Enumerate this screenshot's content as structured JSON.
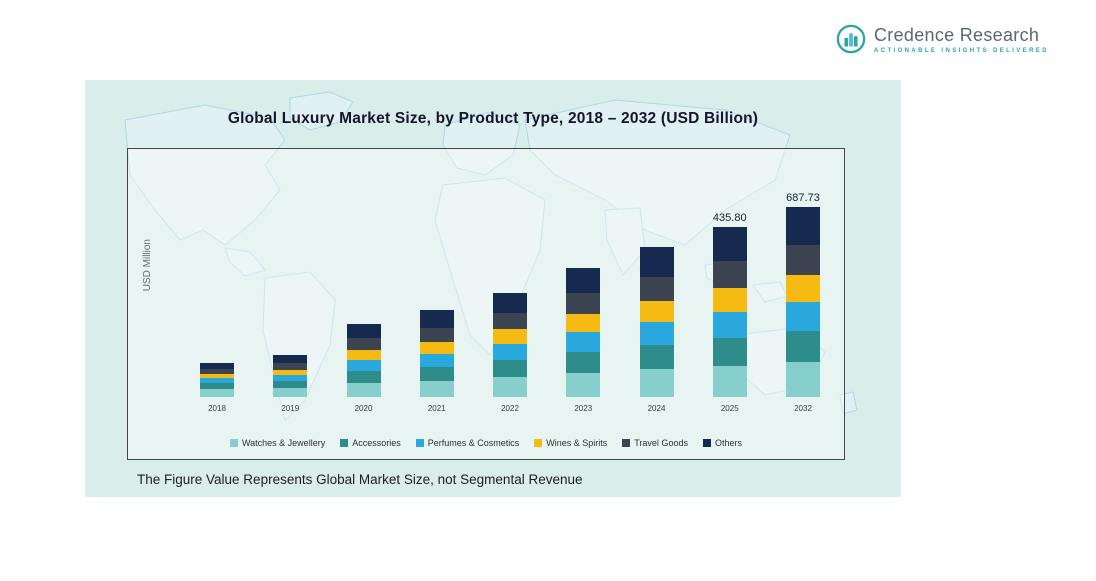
{
  "logo": {
    "name": "Credence Research",
    "tagline": "Actionable Insights Delivered"
  },
  "panel": {
    "title": "Global Luxury Market Size, by Product Type, 2018 – 2032 (USD Billion)",
    "footnote": "The Figure Value Represents Global Market Size, not Segmental Revenue"
  },
  "chart_data": {
    "type": "bar",
    "stacked": true,
    "title": "Global Luxury Market Size, by Product Type, 2018 – 2032 (USD Billion)",
    "xlabel": "",
    "ylabel": "USD Million",
    "axis_ticks": "none",
    "legend_position": "bottom",
    "categories": [
      "2018",
      "2019",
      "2020",
      "2021",
      "2022",
      "2023",
      "2024",
      "2025",
      "2032"
    ],
    "series": [
      {
        "name": "Watches & Jewellery",
        "color": "#86cfcc",
        "values": [
          8,
          9,
          14,
          16,
          20,
          24,
          28,
          31,
          35
        ]
      },
      {
        "name": "Accessories",
        "color": "#2e8c8a",
        "values": [
          6,
          7,
          12,
          14,
          17,
          21,
          24,
          28,
          31
        ]
      },
      {
        "name": "Perfumes & Cosmetics",
        "color": "#28a8dc",
        "values": [
          5,
          6,
          11,
          13,
          16,
          20,
          23,
          26,
          29
        ]
      },
      {
        "name": "Wines & Spirits",
        "color": "#f6bb13",
        "values": [
          4,
          5,
          10,
          12,
          15,
          18,
          21,
          24,
          27
        ]
      },
      {
        "name": "Travel Goods",
        "color": "#3c4452",
        "values": [
          5,
          7,
          12,
          14,
          16,
          21,
          24,
          27,
          30
        ]
      },
      {
        "name": "Others",
        "color": "#152a4e",
        "values": [
          6,
          8,
          14,
          18,
          20,
          25,
          30,
          34,
          38
        ]
      }
    ],
    "values_unit": "relative (axis unlabeled)",
    "total_labels": {
      "2025": "435.80",
      "2032": "687.73"
    }
  },
  "colors": {
    "panel_background": "#d9edea",
    "accent_teal": "#2aa7a2",
    "title_text": "#15152b",
    "map_line": "#a9d4e3"
  }
}
